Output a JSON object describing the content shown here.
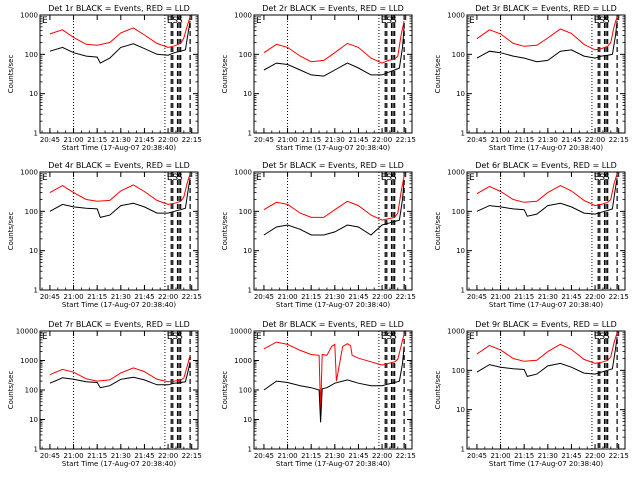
{
  "chart_data": [
    {
      "type": "line",
      "title": "Det 1r BLACK = Events, RED = LLD",
      "xlabel": "Start Time (17-Aug-07 20:38:40)",
      "ylabel": "Counts/sec",
      "yscale": "log",
      "ylim": [
        1,
        1000
      ],
      "yticks": [
        "1",
        "10",
        "100",
        "1000"
      ],
      "xticks": [
        "20:45",
        "21:00",
        "21:15",
        "21:30",
        "21:45",
        "22:00",
        "22:15"
      ],
      "flags": [
        "E",
        "S",
        "S"
      ],
      "series": [
        {
          "color": "#ff0000",
          "x": [
            "20:45",
            "20:53",
            "21:00",
            "21:08",
            "21:15",
            "21:23",
            "21:30",
            "21:38",
            "21:45",
            "21:53",
            "22:00",
            "22:04",
            "22:08",
            "22:10",
            "22:12",
            "22:14"
          ],
          "y": [
            330,
            420,
            270,
            180,
            170,
            200,
            350,
            470,
            310,
            190,
            150,
            165,
            190,
            260,
            500,
            900
          ]
        },
        {
          "color": "#000000",
          "x": [
            "20:45",
            "20:53",
            "21:00",
            "21:08",
            "21:15",
            "21:17",
            "21:23",
            "21:30",
            "21:38",
            "21:45",
            "21:53",
            "22:00",
            "22:04",
            "22:08",
            "22:11",
            "22:13",
            "22:14"
          ],
          "y": [
            120,
            150,
            110,
            90,
            85,
            60,
            80,
            150,
            185,
            140,
            100,
            95,
            110,
            120,
            130,
            400,
            700
          ]
        }
      ]
    },
    {
      "type": "line",
      "title": "Det 2r BLACK = Events, RED = LLD",
      "xlabel": "Start Time (17-Aug-07 20:38:40)",
      "ylabel": "Counts/sec",
      "yscale": "log",
      "ylim": [
        1,
        1000
      ],
      "yticks": [
        "1",
        "10",
        "100",
        "1000"
      ],
      "xticks": [
        "20:45",
        "21:00",
        "21:15",
        "21:30",
        "21:45",
        "22:00",
        "22:15"
      ],
      "flags": [
        "E",
        "S",
        "S"
      ],
      "series": [
        {
          "color": "#ff0000",
          "x": [
            "20:45",
            "20:53",
            "21:00",
            "21:08",
            "21:15",
            "21:23",
            "21:30",
            "21:38",
            "21:45",
            "21:53",
            "22:00",
            "22:04",
            "22:08",
            "22:10",
            "22:12",
            "22:14"
          ],
          "y": [
            110,
            180,
            150,
            90,
            65,
            70,
            110,
            190,
            150,
            80,
            60,
            70,
            75,
            90,
            300,
            700
          ]
        },
        {
          "color": "#000000",
          "x": [
            "20:45",
            "20:53",
            "21:00",
            "21:08",
            "21:15",
            "21:23",
            "21:30",
            "21:38",
            "21:45",
            "21:53",
            "22:00",
            "22:04",
            "22:08",
            "22:11",
            "22:13",
            "22:14"
          ],
          "y": [
            40,
            60,
            55,
            40,
            30,
            28,
            40,
            60,
            45,
            30,
            30,
            35,
            40,
            45,
            150,
            500
          ]
        }
      ]
    },
    {
      "type": "line",
      "title": "Det 3r BLACK = Events, RED = LLD",
      "xlabel": "Start Time (17-Aug-07 20:38:40)",
      "ylabel": "Counts/sec",
      "yscale": "log",
      "ylim": [
        1,
        1000
      ],
      "yticks": [
        "1",
        "10",
        "100",
        "1000"
      ],
      "xticks": [
        "20:45",
        "21:00",
        "21:15",
        "21:30",
        "21:45",
        "22:00",
        "22:15"
      ],
      "flags": [
        "E",
        "S",
        "S"
      ],
      "series": [
        {
          "color": "#ff0000",
          "x": [
            "20:45",
            "20:53",
            "21:00",
            "21:08",
            "21:15",
            "21:23",
            "21:30",
            "21:38",
            "21:45",
            "21:53",
            "22:00",
            "22:04",
            "22:08",
            "22:10",
            "22:12",
            "22:14"
          ],
          "y": [
            250,
            420,
            330,
            190,
            160,
            170,
            260,
            440,
            340,
            180,
            130,
            140,
            160,
            200,
            500,
            900
          ]
        },
        {
          "color": "#000000",
          "x": [
            "20:45",
            "20:53",
            "21:00",
            "21:08",
            "21:15",
            "21:23",
            "21:30",
            "21:38",
            "21:45",
            "21:53",
            "22:00",
            "22:04",
            "22:08",
            "22:11",
            "22:13",
            "22:14"
          ],
          "y": [
            80,
            120,
            110,
            90,
            80,
            65,
            70,
            120,
            130,
            90,
            80,
            90,
            95,
            100,
            300,
            700
          ]
        }
      ]
    },
    {
      "type": "line",
      "title": "Det 4r BLACK = Events, RED = LLD",
      "xlabel": "Start Time (17-Aug-07 20:38:40)",
      "ylabel": "Counts/sec",
      "yscale": "log",
      "ylim": [
        1,
        1000
      ],
      "yticks": [
        "1",
        "10",
        "100",
        "1000"
      ],
      "xticks": [
        "20:45",
        "21:00",
        "21:15",
        "21:30",
        "21:45",
        "22:00",
        "22:15"
      ],
      "flags": [
        "E",
        "S",
        "S"
      ],
      "series": [
        {
          "color": "#ff0000",
          "x": [
            "20:45",
            "20:53",
            "21:00",
            "21:08",
            "21:15",
            "21:23",
            "21:30",
            "21:38",
            "21:45",
            "21:53",
            "22:00",
            "22:04",
            "22:08",
            "22:10",
            "22:12",
            "22:14"
          ],
          "y": [
            300,
            450,
            300,
            200,
            180,
            190,
            330,
            470,
            320,
            190,
            150,
            160,
            180,
            230,
            500,
            900
          ]
        },
        {
          "color": "#000000",
          "x": [
            "20:45",
            "20:53",
            "21:00",
            "21:08",
            "21:15",
            "21:17",
            "21:23",
            "21:30",
            "21:38",
            "21:45",
            "21:53",
            "22:00",
            "22:04",
            "22:08",
            "22:11",
            "22:13",
            "22:14"
          ],
          "y": [
            100,
            150,
            130,
            120,
            115,
            70,
            80,
            140,
            160,
            130,
            90,
            90,
            100,
            110,
            120,
            400,
            700
          ]
        }
      ]
    },
    {
      "type": "line",
      "title": "Det 5r BLACK = Events, RED = LLD",
      "xlabel": "Start Time (17-Aug-07 20:38:40)",
      "ylabel": "Counts/sec",
      "yscale": "log",
      "ylim": [
        1,
        1000
      ],
      "yticks": [
        "1",
        "10",
        "100",
        "1000"
      ],
      "xticks": [
        "20:45",
        "21:00",
        "21:15",
        "21:30",
        "21:45",
        "22:00",
        "22:15"
      ],
      "flags": [
        "E",
        "S",
        "S"
      ],
      "series": [
        {
          "color": "#ff0000",
          "x": [
            "20:45",
            "20:53",
            "21:00",
            "21:08",
            "21:15",
            "21:23",
            "21:30",
            "21:38",
            "21:45",
            "21:53",
            "22:00",
            "22:04",
            "22:08",
            "22:10",
            "22:12",
            "22:14"
          ],
          "y": [
            110,
            170,
            150,
            90,
            70,
            70,
            110,
            180,
            140,
            80,
            60,
            65,
            70,
            90,
            300,
            800
          ]
        },
        {
          "color": "#000000",
          "x": [
            "20:45",
            "20:53",
            "21:00",
            "21:08",
            "21:15",
            "21:23",
            "21:30",
            "21:38",
            "21:45",
            "21:53",
            "22:00",
            "22:04",
            "22:08",
            "22:11",
            "22:13",
            "22:14"
          ],
          "y": [
            25,
            40,
            45,
            35,
            25,
            25,
            30,
            45,
            40,
            25,
            45,
            50,
            55,
            60,
            200,
            600
          ]
        }
      ]
    },
    {
      "type": "line",
      "title": "Det 6r BLACK = Events, RED = LLD",
      "xlabel": "Start Time (17-Aug-07 20:38:40)",
      "ylabel": "Counts/sec",
      "yscale": "log",
      "ylim": [
        1,
        1000
      ],
      "yticks": [
        "1",
        "10",
        "100",
        "1000"
      ],
      "xticks": [
        "20:45",
        "21:00",
        "21:15",
        "21:30",
        "21:45",
        "22:00",
        "22:15"
      ],
      "flags": [
        "E",
        "S",
        "S"
      ],
      "series": [
        {
          "color": "#ff0000",
          "x": [
            "20:45",
            "20:53",
            "21:00",
            "21:08",
            "21:15",
            "21:23",
            "21:30",
            "21:38",
            "21:45",
            "21:53",
            "22:00",
            "22:04",
            "22:08",
            "22:10",
            "22:12",
            "22:14"
          ],
          "y": [
            280,
            430,
            320,
            200,
            170,
            180,
            300,
            450,
            330,
            190,
            140,
            150,
            170,
            200,
            500,
            900
          ]
        },
        {
          "color": "#000000",
          "x": [
            "20:45",
            "20:53",
            "21:00",
            "21:08",
            "21:15",
            "21:17",
            "21:23",
            "21:30",
            "21:38",
            "21:45",
            "21:53",
            "22:00",
            "22:04",
            "22:08",
            "22:11",
            "22:13",
            "22:14"
          ],
          "y": [
            100,
            140,
            130,
            115,
            110,
            75,
            85,
            140,
            160,
            130,
            90,
            85,
            95,
            105,
            115,
            400,
            700
          ]
        }
      ]
    },
    {
      "type": "line",
      "title": "Det 7r BLACK = Events, RED = LLD",
      "xlabel": "Start Time (17-Aug-07 20:38:40)",
      "ylabel": "Counts/sec",
      "yscale": "log",
      "ylim": [
        1,
        10000
      ],
      "yticks": [
        "1",
        "10",
        "100",
        "1000",
        "10000"
      ],
      "xticks": [
        "20:45",
        "21:00",
        "21:15",
        "21:30",
        "21:45",
        "22:00",
        "22:15"
      ],
      "flags": [
        "E",
        "S",
        "S"
      ],
      "series": [
        {
          "color": "#ff0000",
          "x": [
            "20:45",
            "20:53",
            "21:00",
            "21:08",
            "21:15",
            "21:23",
            "21:30",
            "21:38",
            "21:45",
            "21:53",
            "22:00",
            "22:04",
            "22:08",
            "22:10",
            "22:12",
            "22:14"
          ],
          "y": [
            330,
            500,
            400,
            240,
            200,
            220,
            380,
            560,
            420,
            230,
            190,
            200,
            220,
            250,
            600,
            1500
          ]
        },
        {
          "color": "#000000",
          "x": [
            "20:45",
            "20:53",
            "21:00",
            "21:08",
            "21:15",
            "21:17",
            "21:23",
            "21:30",
            "21:38",
            "21:45",
            "21:53",
            "22:00",
            "22:04",
            "22:08",
            "22:11",
            "22:13",
            "22:14"
          ],
          "y": [
            170,
            260,
            230,
            190,
            180,
            120,
            140,
            230,
            270,
            220,
            150,
            150,
            170,
            180,
            190,
            500,
            900
          ]
        }
      ]
    },
    {
      "type": "line",
      "title": "Det 8r BLACK = Events, RED = LLD",
      "xlabel": "Start Time (17-Aug-07 20:38:40)",
      "ylabel": "Counts/sec",
      "yscale": "log",
      "ylim": [
        1,
        10000
      ],
      "yticks": [
        "1",
        "10",
        "100",
        "1000",
        "10000"
      ],
      "xticks": [
        "20:45",
        "21:00",
        "21:15",
        "21:30",
        "21:45",
        "22:00",
        "22:15"
      ],
      "flags": [
        "E",
        "S",
        "S"
      ],
      "series": [
        {
          "color": "#ff0000",
          "x": [
            "20:45",
            "20:53",
            "21:00",
            "21:08",
            "21:15",
            "21:20",
            "21:21",
            "21:22",
            "21:25",
            "21:28",
            "21:30",
            "21:31",
            "21:35",
            "21:38",
            "21:40",
            "21:41",
            "21:45",
            "21:53",
            "22:00",
            "22:04",
            "22:08",
            "22:10",
            "22:12",
            "22:14"
          ],
          "y": [
            2500,
            4200,
            3500,
            2200,
            1600,
            1500,
            20,
            1600,
            1500,
            3000,
            3500,
            200,
            3000,
            3700,
            3200,
            1500,
            1200,
            900,
            700,
            800,
            900,
            1100,
            3000,
            8000
          ]
        },
        {
          "color": "#000000",
          "x": [
            "20:45",
            "20:53",
            "21:00",
            "21:08",
            "21:15",
            "21:20",
            "21:21",
            "21:22",
            "21:25",
            "21:30",
            "21:38",
            "21:45",
            "21:53",
            "22:00",
            "22:04",
            "22:08",
            "22:11",
            "22:13",
            "22:14"
          ],
          "y": [
            100,
            200,
            180,
            140,
            120,
            100,
            8,
            110,
            120,
            170,
            220,
            170,
            140,
            140,
            160,
            180,
            200,
            800,
            3000
          ]
        }
      ]
    },
    {
      "type": "line",
      "title": "Det 9r BLACK = Events, RED = LLD",
      "xlabel": "Start Time (17-Aug-07 20:38:40)",
      "ylabel": "Counts/sec",
      "yscale": "log",
      "ylim": [
        1,
        1000
      ],
      "yticks": [
        "1",
        "10",
        "100",
        "1000"
      ],
      "xticks": [
        "20:45",
        "21:00",
        "21:15",
        "21:30",
        "21:45",
        "22:00",
        "22:15"
      ],
      "flags": [
        "E",
        "S",
        "S"
      ],
      "series": [
        {
          "color": "#ff0000",
          "x": [
            "20:45",
            "20:53",
            "21:00",
            "21:08",
            "21:15",
            "21:23",
            "21:30",
            "21:38",
            "21:45",
            "21:53",
            "22:00",
            "22:04",
            "22:08",
            "22:10",
            "22:12",
            "22:14"
          ],
          "y": [
            260,
            430,
            330,
            200,
            170,
            180,
            300,
            460,
            340,
            190,
            150,
            160,
            180,
            220,
            500,
            900
          ]
        },
        {
          "color": "#000000",
          "x": [
            "20:45",
            "20:53",
            "21:00",
            "21:08",
            "21:15",
            "21:17",
            "21:23",
            "21:30",
            "21:38",
            "21:45",
            "21:53",
            "22:00",
            "22:04",
            "22:08",
            "22:11",
            "22:13",
            "22:14"
          ],
          "y": [
            90,
            140,
            120,
            110,
            105,
            70,
            80,
            130,
            150,
            120,
            85,
            80,
            90,
            100,
            110,
            350,
            700
          ]
        }
      ]
    }
  ],
  "markers": {
    "dotted_lines": [
      "21:00",
      "21:58"
    ],
    "dashed_lines": [
      "22:02",
      "22:03",
      "22:06",
      "22:07",
      "22:08",
      "22:14"
    ]
  }
}
